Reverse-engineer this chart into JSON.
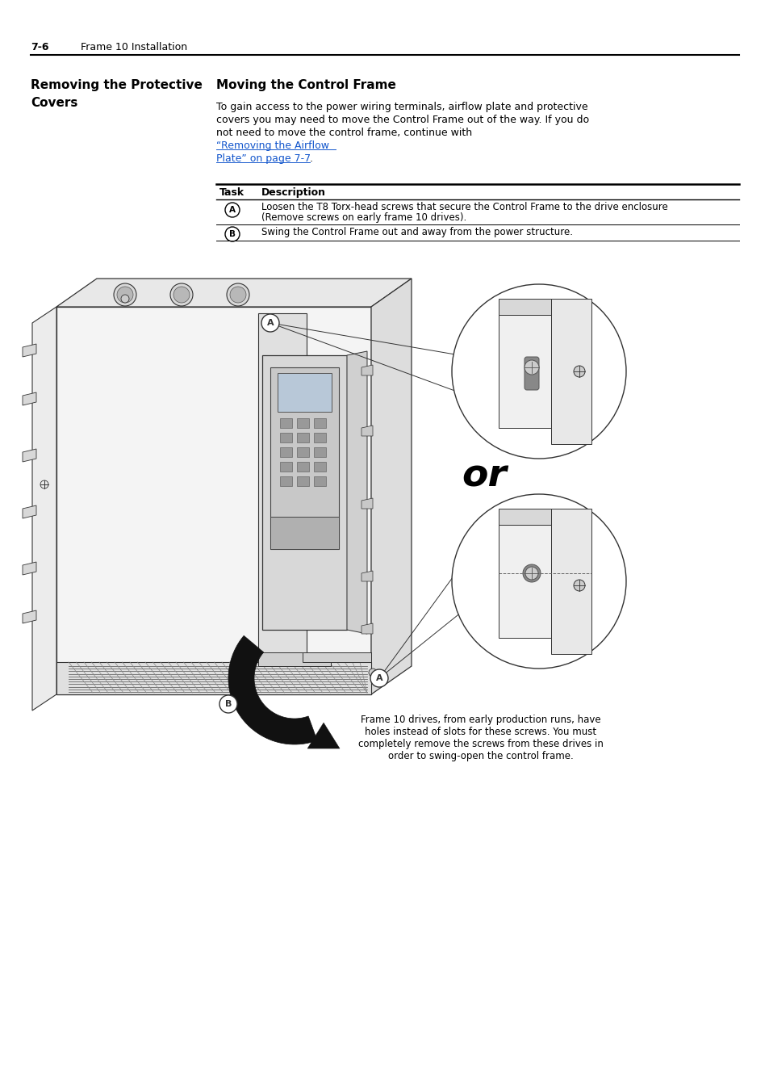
{
  "page_header_num": "7-6",
  "page_header_text": "Frame 10 Installation",
  "section_title_line1": "Removing the Protective",
  "section_title_line2": "Covers",
  "subsection_title": "Moving the Control Frame",
  "body_line1": "To gain access to the power wiring terminals, airflow plate and protective",
  "body_line2": "covers you may need to move the Control Frame out of the way. If you do",
  "body_line3": "not need to move the control frame, continue with ",
  "link_line1": "“Removing the Airflow",
  "link_line2": "Plate” on page 7-7",
  "body_end": ".",
  "table_col1_header": "Task",
  "table_col2_header": "Description",
  "table_rowA_text1": "Loosen the T8 Torx-head screws that secure the Control Frame to the drive enclosure",
  "table_rowA_text2": "(Remove screws on early frame 10 drives).",
  "table_rowB_text": "Swing the Control Frame out and away from the power structure.",
  "or_text": "or",
  "caption_line1": "Frame 10 drives, from early production runs, have",
  "caption_line2": "holes instead of slots for these screws. You must",
  "caption_line3": "completely remove the screws from these drives in",
  "caption_line4": "order to swing-open the control frame.",
  "bg_color": "#ffffff",
  "text_color": "#000000",
  "link_color": "#1155cc",
  "line_color": "#000000",
  "draw_color": "#333333",
  "light_gray": "#e8e8e8",
  "mid_gray": "#cccccc",
  "dark_gray": "#555555"
}
